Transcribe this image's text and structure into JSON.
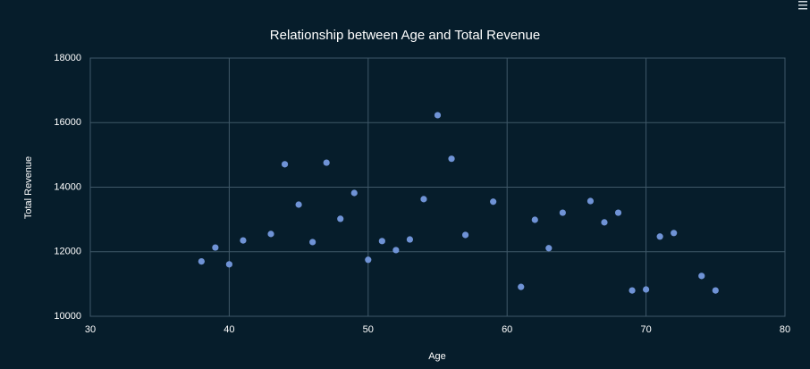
{
  "chart_data": {
    "type": "scatter",
    "title": "Relationship between Age and Total Revenue",
    "xlabel": "Age",
    "ylabel": "Total Revenue",
    "x": [
      38,
      39,
      40,
      41,
      43,
      44,
      45,
      46,
      47,
      48,
      49,
      50,
      51,
      52,
      53,
      54,
      55,
      56,
      57,
      59,
      61,
      62,
      63,
      64,
      66,
      67,
      68,
      69,
      70,
      71,
      72,
      74,
      75
    ],
    "values": [
      11700,
      12130,
      11610,
      12350,
      12550,
      14710,
      13460,
      12300,
      14760,
      13020,
      13820,
      11750,
      12330,
      12050,
      12380,
      13630,
      16230,
      14880,
      12520,
      13550,
      10910,
      12990,
      12110,
      13210,
      13570,
      12910,
      13210,
      10800,
      10830,
      12470,
      12580,
      11250,
      10800
    ],
    "color": "#6f93d6",
    "xlim": [
      30,
      80
    ],
    "xticks": [
      30,
      40,
      50,
      60,
      70,
      80
    ],
    "ylim": [
      10000,
      18000
    ],
    "yticks": [
      10000,
      12000,
      14000,
      16000,
      18000
    ],
    "grid": true
  }
}
